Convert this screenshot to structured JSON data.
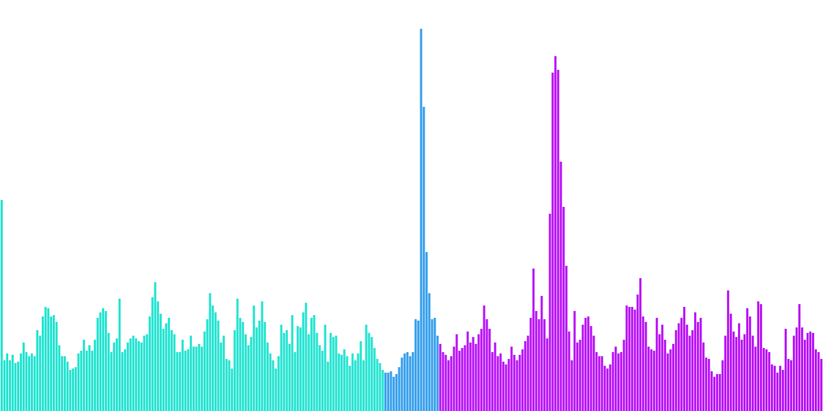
{
  "chart_data": {
    "type": "bar",
    "categories": [
      null,
      null,
      null,
      null,
      null,
      null,
      null,
      null,
      null,
      null,
      null,
      null,
      null,
      null,
      null,
      null,
      null,
      null,
      null,
      null,
      null,
      null,
      null,
      null,
      null,
      null,
      null,
      null,
      null,
      null,
      null,
      null,
      null,
      null,
      null,
      null,
      null,
      null,
      null,
      null,
      null,
      null,
      null,
      null,
      null,
      null,
      null,
      null,
      null,
      null,
      null,
      null,
      null,
      null,
      null,
      null,
      null,
      null,
      null,
      null,
      null,
      null,
      null,
      null,
      null,
      null,
      null,
      null,
      null,
      null,
      null,
      null,
      null,
      null,
      null,
      null,
      null,
      null,
      null,
      null,
      null,
      null,
      null,
      null,
      null,
      null,
      null,
      null,
      null,
      null,
      null,
      null,
      null,
      null,
      null,
      null,
      null,
      null,
      null,
      null,
      null,
      null,
      null,
      null,
      null,
      null,
      null,
      null,
      null,
      null,
      null,
      null,
      null,
      null,
      null,
      null,
      null,
      null,
      null,
      null,
      null,
      null,
      null,
      null,
      null,
      null,
      null,
      null,
      null,
      null,
      null,
      null,
      null,
      null,
      null,
      null,
      null,
      null,
      null,
      null,
      null,
      null,
      null,
      null,
      null,
      null,
      null,
      null,
      null,
      null,
      null,
      null,
      null,
      null,
      null,
      null,
      null,
      null,
      null,
      null,
      null,
      null,
      null,
      null,
      null,
      null,
      null,
      null,
      null,
      null,
      null,
      null,
      null,
      null,
      null,
      null,
      null,
      null,
      null,
      null,
      null,
      null,
      null,
      null,
      null,
      null,
      null,
      null,
      null,
      null,
      null,
      null,
      null,
      null,
      null,
      null,
      null,
      null,
      null,
      null,
      null,
      null,
      null,
      null,
      null,
      null,
      null,
      null,
      null,
      null,
      null,
      null,
      null,
      null,
      null,
      null,
      null,
      null,
      null,
      null,
      null,
      null,
      null,
      null,
      null,
      null,
      null,
      null,
      null,
      null,
      null,
      null,
      null,
      null,
      null,
      null,
      null,
      null,
      null,
      null,
      null,
      null,
      null,
      null,
      null,
      null,
      null,
      null,
      null,
      null,
      null,
      null,
      null,
      null,
      null,
      null,
      null,
      null,
      null,
      null,
      null,
      null,
      null,
      null,
      null,
      null,
      null,
      null,
      null,
      null,
      null,
      null,
      null,
      null,
      null,
      null,
      null,
      null,
      null,
      null,
      null,
      null,
      null,
      null,
      null,
      null,
      null,
      null,
      null,
      null,
      null,
      null,
      null,
      null,
      null,
      null,
      null,
      null,
      null,
      null
    ],
    "values": [
      308,
      74,
      84,
      74,
      82,
      70,
      72,
      84,
      100,
      86,
      80,
      84,
      80,
      118,
      110,
      138,
      152,
      150,
      138,
      140,
      130,
      96,
      80,
      80,
      72,
      60,
      62,
      64,
      84,
      88,
      104,
      88,
      96,
      88,
      104,
      136,
      144,
      150,
      146,
      114,
      86,
      100,
      106,
      164,
      86,
      90,
      100,
      106,
      110,
      106,
      102,
      100,
      110,
      112,
      138,
      166,
      188,
      160,
      142,
      120,
      128,
      136,
      118,
      112,
      86,
      86,
      104,
      88,
      90,
      110,
      94,
      94,
      98,
      94,
      116,
      134,
      172,
      154,
      144,
      132,
      100,
      110,
      76,
      74,
      62,
      118,
      164,
      136,
      130,
      112,
      96,
      108,
      154,
      122,
      132,
      160,
      130,
      100,
      84,
      74,
      62,
      80,
      126,
      114,
      118,
      98,
      140,
      86,
      124,
      122,
      144,
      158,
      112,
      136,
      140,
      114,
      96,
      88,
      126,
      72,
      114,
      108,
      110,
      84,
      82,
      90,
      80,
      66,
      84,
      74,
      84,
      102,
      74,
      126,
      114,
      108,
      92,
      76,
      70,
      60,
      56,
      56,
      58,
      50,
      54,
      64,
      78,
      84,
      86,
      80,
      86,
      134,
      132,
      558,
      444,
      232,
      172,
      134,
      136,
      110,
      98,
      86,
      82,
      74,
      80,
      94,
      112,
      88,
      92,
      96,
      116,
      100,
      108,
      98,
      112,
      120,
      154,
      134,
      120,
      86,
      100,
      80,
      84,
      72,
      68,
      76,
      94,
      82,
      74,
      82,
      90,
      102,
      110,
      136,
      208,
      146,
      134,
      168,
      134,
      106,
      288,
      494,
      518,
      498,
      364,
      298,
      212,
      116,
      74,
      146,
      100,
      104,
      126,
      136,
      138,
      124,
      110,
      86,
      80,
      80,
      66,
      62,
      68,
      86,
      94,
      84,
      86,
      104,
      154,
      152,
      152,
      148,
      170,
      194,
      138,
      130,
      94,
      90,
      88,
      136,
      112,
      126,
      104,
      84,
      90,
      98,
      118,
      128,
      136,
      152,
      126,
      110,
      118,
      144,
      130,
      136,
      100,
      78,
      76,
      58,
      50,
      54,
      54,
      74,
      110,
      176,
      142,
      116,
      108,
      128,
      104,
      112,
      150,
      138,
      110,
      94,
      160,
      156,
      92,
      90,
      86,
      68,
      66,
      56,
      66,
      60,
      120,
      76,
      74,
      110,
      122,
      156,
      122,
      104,
      114,
      116,
      114,
      90,
      86,
      76
    ],
    "colors": [
      "#1ee3d0",
      "#1ee3d0",
      "#1ee3d0",
      "#1ee3d0",
      "#1ee3d0",
      "#1ee3d0",
      "#1ee3d0",
      "#1ee3d0",
      "#1ee3d0",
      "#1ee3d0",
      "#1ee3d0",
      "#1ee3d0",
      "#1ee3d0",
      "#1ee3d0",
      "#1ee3d0",
      "#1ee3d0",
      "#1ee3d0",
      "#1ee3d0",
      "#1ee3d0",
      "#1ee3d0",
      "#1ee3d0",
      "#1ee3d0",
      "#1ee3d0",
      "#1ee3d0",
      "#1ee3d0",
      "#1ee3d0",
      "#1ee3d0",
      "#1ee3d0",
      "#1ee3d0",
      "#1ee3d0",
      "#1ee3d0",
      "#1ee3d0",
      "#1ee3d0",
      "#1ee3d0",
      "#1ee3d0",
      "#1ee3d0",
      "#1ee3d0",
      "#1ee3d0",
      "#1ee3d0",
      "#1ee3d0",
      "#1ee3d0",
      "#1ee3d0",
      "#1ee3d0",
      "#1ee3d0",
      "#1ee3d0",
      "#1ee3d0",
      "#1ee3d0",
      "#1ee3d0",
      "#1ee3d0",
      "#1ee3d0",
      "#1ee3d0",
      "#1ee3d0",
      "#1ee3d0",
      "#1ee3d0",
      "#1ee3d0",
      "#1ee3d0",
      "#1ee3d0",
      "#1ee3d0",
      "#1ee3d0",
      "#1ee3d0",
      "#1ee3d0",
      "#1ee3d0",
      "#1ee3d0",
      "#1ee3d0",
      "#1ee3d0",
      "#1ee3d0",
      "#1ee3d0",
      "#1ee3d0",
      "#1ee3d0",
      "#1ee3d0",
      "#1ee3d0",
      "#1ee3d0",
      "#1ee3d0",
      "#1ee3d0",
      "#1ee3d0",
      "#1ee3d0",
      "#1ee3d0",
      "#1ee3d0",
      "#1ee3d0",
      "#1ee3d0",
      "#1ee3d0",
      "#1ee3d0",
      "#1ee3d0",
      "#1ee3d0",
      "#1ee3d0",
      "#1ee3d0",
      "#1ee3d0",
      "#1ee3d0",
      "#1ee3d0",
      "#1ee3d0",
      "#1ee3d0",
      "#1ee3d0",
      "#1ee3d0",
      "#1ee3d0",
      "#1ee3d0",
      "#1ee3d0",
      "#1ee3d0",
      "#1ee3d0",
      "#1ee3d0",
      "#1ee3d0",
      "#1ee3d0",
      "#1ee3d0",
      "#1ee3d0",
      "#1ee3d0",
      "#1ee3d0",
      "#1ee3d0",
      "#1ee3d0",
      "#1ee3d0",
      "#1ee3d0",
      "#1ee3d0",
      "#1ee3d0",
      "#1ee3d0",
      "#1ee3d0",
      "#1ee3d0",
      "#1ee3d0",
      "#1ee3d0",
      "#1ee3d0",
      "#1ee3d0",
      "#1ee3d0",
      "#1ee3d0",
      "#1ee3d0",
      "#1ee3d0",
      "#1ee3d0",
      "#1ee3d0",
      "#1ee3d0",
      "#1ee3d0",
      "#1ee3d0",
      "#1ee3d0",
      "#1ee3d0",
      "#1ee3d0",
      "#1ee3d0",
      "#1ee3d0",
      "#1ee3d0",
      "#1ee3d0",
      "#1ee3d0",
      "#1ee3d0",
      "#1ee3d0",
      "#1ee3d0",
      "#1ee3d0",
      "#1ee3d0",
      "#2f9cec",
      "#2f9cec",
      "#2f9cec",
      "#2f9cec",
      "#2f9cec",
      "#2f9cec",
      "#2f9cec",
      "#2f9cec",
      "#2f9cec",
      "#2f9cec",
      "#2f9cec",
      "#2f9cec",
      "#2f9cec",
      "#2f9cec",
      "#2f9cec",
      "#2f9cec",
      "#2f9cec",
      "#2f9cec",
      "#2f9cec",
      "#2f9cec",
      "#b70ef6",
      "#b70ef6",
      "#b70ef6",
      "#b70ef6",
      "#b70ef6",
      "#b70ef6",
      "#b70ef6",
      "#b70ef6",
      "#b70ef6",
      "#b70ef6",
      "#b70ef6",
      "#b70ef6",
      "#b70ef6",
      "#b70ef6",
      "#b70ef6",
      "#b70ef6",
      "#b70ef6",
      "#b70ef6",
      "#b70ef6",
      "#b70ef6",
      "#b70ef6",
      "#b70ef6",
      "#b70ef6",
      "#b70ef6",
      "#b70ef6",
      "#b70ef6",
      "#b70ef6",
      "#b70ef6",
      "#b70ef6",
      "#b70ef6",
      "#b70ef6",
      "#b70ef6",
      "#b70ef6",
      "#b70ef6",
      "#b70ef6",
      "#b70ef6",
      "#b70ef6",
      "#b70ef6",
      "#b70ef6",
      "#b70ef6",
      "#b70ef6",
      "#b70ef6",
      "#b70ef6",
      "#b70ef6",
      "#b70ef6",
      "#b70ef6",
      "#b70ef6",
      "#b70ef6",
      "#b70ef6",
      "#b70ef6",
      "#b70ef6",
      "#b70ef6",
      "#b70ef6",
      "#b70ef6",
      "#b70ef6",
      "#b70ef6",
      "#b70ef6",
      "#b70ef6",
      "#b70ef6",
      "#b70ef6",
      "#b70ef6",
      "#b70ef6",
      "#b70ef6",
      "#b70ef6",
      "#b70ef6",
      "#b70ef6",
      "#b70ef6",
      "#b70ef6",
      "#b70ef6",
      "#b70ef6",
      "#b70ef6",
      "#b70ef6",
      "#b70ef6",
      "#b70ef6",
      "#b70ef6",
      "#b70ef6",
      "#b70ef6",
      "#b70ef6",
      "#b70ef6",
      "#b70ef6",
      "#b70ef6",
      "#b70ef6",
      "#b70ef6",
      "#b70ef6",
      "#b70ef6",
      "#b70ef6",
      "#b70ef6",
      "#b70ef6",
      "#b70ef6",
      "#b70ef6",
      "#b70ef6",
      "#b70ef6",
      "#b70ef6",
      "#b70ef6",
      "#b70ef6",
      "#b70ef6",
      "#b70ef6",
      "#b70ef6",
      "#b70ef6",
      "#b70ef6",
      "#b70ef6",
      "#b70ef6",
      "#b70ef6",
      "#b70ef6",
      "#b70ef6",
      "#b70ef6",
      "#b70ef6",
      "#b70ef6",
      "#b70ef6",
      "#b70ef6",
      "#b70ef6",
      "#b70ef6",
      "#b70ef6",
      "#b70ef6",
      "#b70ef6",
      "#b70ef6",
      "#b70ef6",
      "#b70ef6",
      "#b70ef6",
      "#b70ef6",
      "#b70ef6",
      "#b70ef6",
      "#b70ef6",
      "#b70ef6",
      "#b70ef6",
      "#b70ef6",
      "#b70ef6",
      "#b70ef6",
      "#b70ef6",
      "#b70ef6",
      "#b70ef6",
      "#b70ef6",
      "#b70ef6",
      "#b70ef6",
      "#b70ef6",
      "#b70ef6",
      "#b70ef6",
      "#b70ef6",
      "#b70ef6",
      "#b70ef6"
    ],
    "ylim": [
      0,
      600
    ],
    "tick_labels": false,
    "grid": false
  }
}
